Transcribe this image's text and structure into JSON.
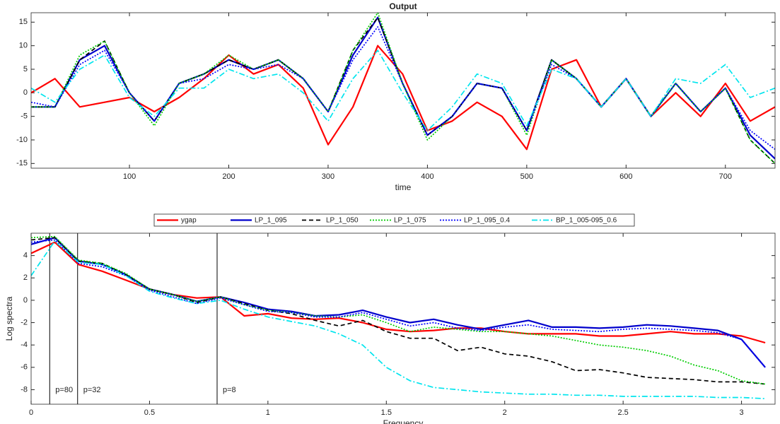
{
  "chart_data": [
    {
      "type": "line",
      "title": "Output",
      "xlabel": "time",
      "x": [
        1,
        25,
        50,
        75,
        100,
        125,
        150,
        175,
        200,
        225,
        250,
        275,
        300,
        325,
        350,
        375,
        400,
        425,
        450,
        475,
        500,
        525,
        550,
        575,
        600,
        625,
        650,
        675,
        700,
        725,
        750
      ],
      "xlim": [
        1,
        750
      ],
      "xticks": [
        100,
        200,
        300,
        400,
        500,
        600,
        700
      ],
      "ylim": [
        -16,
        17
      ],
      "yticks": [
        -15,
        -10,
        -5,
        0,
        5,
        10,
        15
      ],
      "series": [
        {
          "name": "ygap",
          "color": "#ff0000",
          "dash": "solid",
          "values": [
            0,
            3,
            -3,
            -2,
            -1,
            -4,
            -1,
            3,
            8,
            4,
            6,
            1,
            -11,
            -3,
            10,
            4,
            -8,
            -6,
            -2,
            -5,
            -12,
            5,
            7,
            -3,
            3,
            -5,
            0,
            -5,
            2,
            -6,
            -3
          ]
        },
        {
          "name": "LP_1_095",
          "color": "#0000cc",
          "dash": "solid",
          "values": [
            -3,
            -3,
            7,
            10,
            0,
            -6,
            2,
            4,
            7,
            5,
            7,
            3,
            -4,
            8,
            16,
            2,
            -9,
            -5,
            2,
            1,
            -8,
            7,
            3,
            -3,
            3,
            -5,
            2,
            -4,
            1,
            -9,
            -14
          ]
        },
        {
          "name": "LP_1_050",
          "color": "#000000",
          "dash": "dashed",
          "values": [
            -3,
            -3,
            7,
            11,
            0,
            -6,
            2,
            4,
            7,
            5,
            7,
            3,
            -4,
            9,
            16,
            2,
            -9,
            -5,
            2,
            1,
            -8,
            7,
            3,
            -3,
            3,
            -5,
            2,
            -4,
            1,
            -10,
            -15
          ]
        },
        {
          "name": "LP_1_075",
          "color": "#00cc00",
          "dash": "dotted",
          "values": [
            -3,
            -3,
            8,
            11,
            0,
            -7,
            2,
            4,
            8,
            5,
            7,
            3,
            -4,
            9,
            17,
            2,
            -10,
            -5,
            2,
            1,
            -9,
            7,
            3,
            -3,
            3,
            -5,
            2,
            -4,
            1,
            -10,
            -15
          ]
        },
        {
          "name": "LP_1_095_0.4",
          "color": "#0000ff",
          "dash": "dotted",
          "values": [
            -2,
            -3,
            6,
            9,
            0,
            -6,
            2,
            3,
            6,
            5,
            6,
            3,
            -4,
            7,
            14,
            2,
            -9,
            -5,
            2,
            1,
            -8,
            6,
            3,
            -3,
            3,
            -5,
            2,
            -4,
            1,
            -8,
            -12
          ]
        },
        {
          "name": "BP_1_005-095_0.6",
          "color": "#00e5ee",
          "dash": "dashdot",
          "values": [
            1,
            -2,
            5,
            8,
            -1,
            -5,
            1,
            1,
            5,
            3,
            4,
            0,
            -6,
            3,
            9,
            0,
            -8,
            -3,
            4,
            2,
            -7,
            5,
            3,
            -3,
            3,
            -5,
            3,
            2,
            6,
            -1,
            1
          ]
        }
      ]
    },
    {
      "type": "line",
      "xlabel": "Frequency",
      "ylabel": "Log spectra",
      "x": [
        0,
        0.1,
        0.2,
        0.3,
        0.4,
        0.5,
        0.6,
        0.7,
        0.8,
        0.9,
        1.0,
        1.1,
        1.2,
        1.3,
        1.4,
        1.5,
        1.6,
        1.7,
        1.8,
        1.9,
        2.0,
        2.1,
        2.2,
        2.3,
        2.4,
        2.5,
        2.6,
        2.7,
        2.8,
        2.9,
        3.0,
        3.1
      ],
      "xlim": [
        0,
        3.1416
      ],
      "xticks": [
        0,
        0.5,
        1,
        1.5,
        2,
        2.5,
        3
      ],
      "ylim": [
        -9.3,
        6
      ],
      "yticks": [
        -8,
        -6,
        -4,
        -2,
        0,
        2,
        4
      ],
      "annotations": [
        {
          "text": "p=80",
          "x": 0.0785
        },
        {
          "text": "p=32",
          "x": 0.1963
        },
        {
          "text": "p=8",
          "x": 0.7854
        }
      ],
      "series": [
        {
          "color": "#ff0000",
          "dash": "solid",
          "values": [
            4.2,
            5.2,
            3.2,
            2.6,
            1.8,
            1.0,
            0.5,
            0.2,
            0.3,
            -1.4,
            -1.2,
            -1.6,
            -1.7,
            -1.6,
            -2.0,
            -2.6,
            -2.8,
            -2.7,
            -2.5,
            -2.5,
            -2.8,
            -3.0,
            -3.0,
            -3.0,
            -3.2,
            -3.2,
            -3.0,
            -2.8,
            -3.0,
            -3.0,
            -3.2,
            -3.8
          ]
        },
        {
          "color": "#0000cc",
          "dash": "solid",
          "values": [
            5,
            5.6,
            3.5,
            3.2,
            2.3,
            1.0,
            0.5,
            -0.1,
            0.3,
            -0.2,
            -0.8,
            -1.0,
            -1.4,
            -1.3,
            -0.9,
            -1.5,
            -2.0,
            -1.7,
            -2.2,
            -2.6,
            -2.2,
            -1.8,
            -2.4,
            -2.4,
            -2.5,
            -2.4,
            -2.2,
            -2.3,
            -2.5,
            -2.7,
            -3.5,
            -6.0
          ]
        },
        {
          "color": "#000000",
          "dash": "dashed",
          "values": [
            5.4,
            5.6,
            3.5,
            3.3,
            2.3,
            1.0,
            0.5,
            -0.2,
            0.3,
            -0.3,
            -0.9,
            -1.2,
            -1.8,
            -2.3,
            -1.8,
            -2.8,
            -3.4,
            -3.4,
            -4.5,
            -4.2,
            -4.8,
            -5.0,
            -5.5,
            -6.3,
            -6.2,
            -6.5,
            -6.9,
            -7.0,
            -7.1,
            -7.3,
            -7.3,
            -7.5
          ]
        },
        {
          "color": "#00cc00",
          "dash": "dotted",
          "values": [
            5.6,
            5.7,
            3.6,
            3.3,
            2.4,
            1.0,
            0.5,
            -0.1,
            0.3,
            -0.4,
            -0.9,
            -1.1,
            -1.4,
            -1.5,
            -1.3,
            -2.0,
            -2.8,
            -2.4,
            -2.6,
            -2.8,
            -2.8,
            -3.0,
            -3.2,
            -3.6,
            -4.0,
            -4.2,
            -4.5,
            -5.0,
            -5.8,
            -6.3,
            -7.2,
            -7.5
          ]
        },
        {
          "color": "#0000ff",
          "dash": "dotted",
          "values": [
            5.2,
            5.4,
            3.3,
            3.0,
            2.2,
            0.9,
            0.3,
            -0.3,
            0.2,
            -0.4,
            -1.0,
            -1.1,
            -1.5,
            -1.5,
            -1.1,
            -1.7,
            -2.3,
            -2.0,
            -2.5,
            -2.7,
            -2.4,
            -2.2,
            -2.6,
            -2.7,
            -2.8,
            -2.6,
            -2.5,
            -2.6,
            -2.7,
            -2.9,
            -3.5,
            -6.0
          ]
        },
        {
          "color": "#00e5ee",
          "dash": "dashdot",
          "values": [
            2.2,
            5.3,
            3.4,
            3.2,
            2.2,
            0.8,
            0.2,
            -0.3,
            0.0,
            -0.8,
            -1.5,
            -1.9,
            -2.3,
            -3.0,
            -4.0,
            -6.0,
            -7.2,
            -7.8,
            -8.0,
            -8.2,
            -8.3,
            -8.4,
            -8.4,
            -8.5,
            -8.5,
            -8.6,
            -8.6,
            -8.6,
            -8.6,
            -8.7,
            -8.7,
            -8.8
          ]
        }
      ]
    }
  ]
}
